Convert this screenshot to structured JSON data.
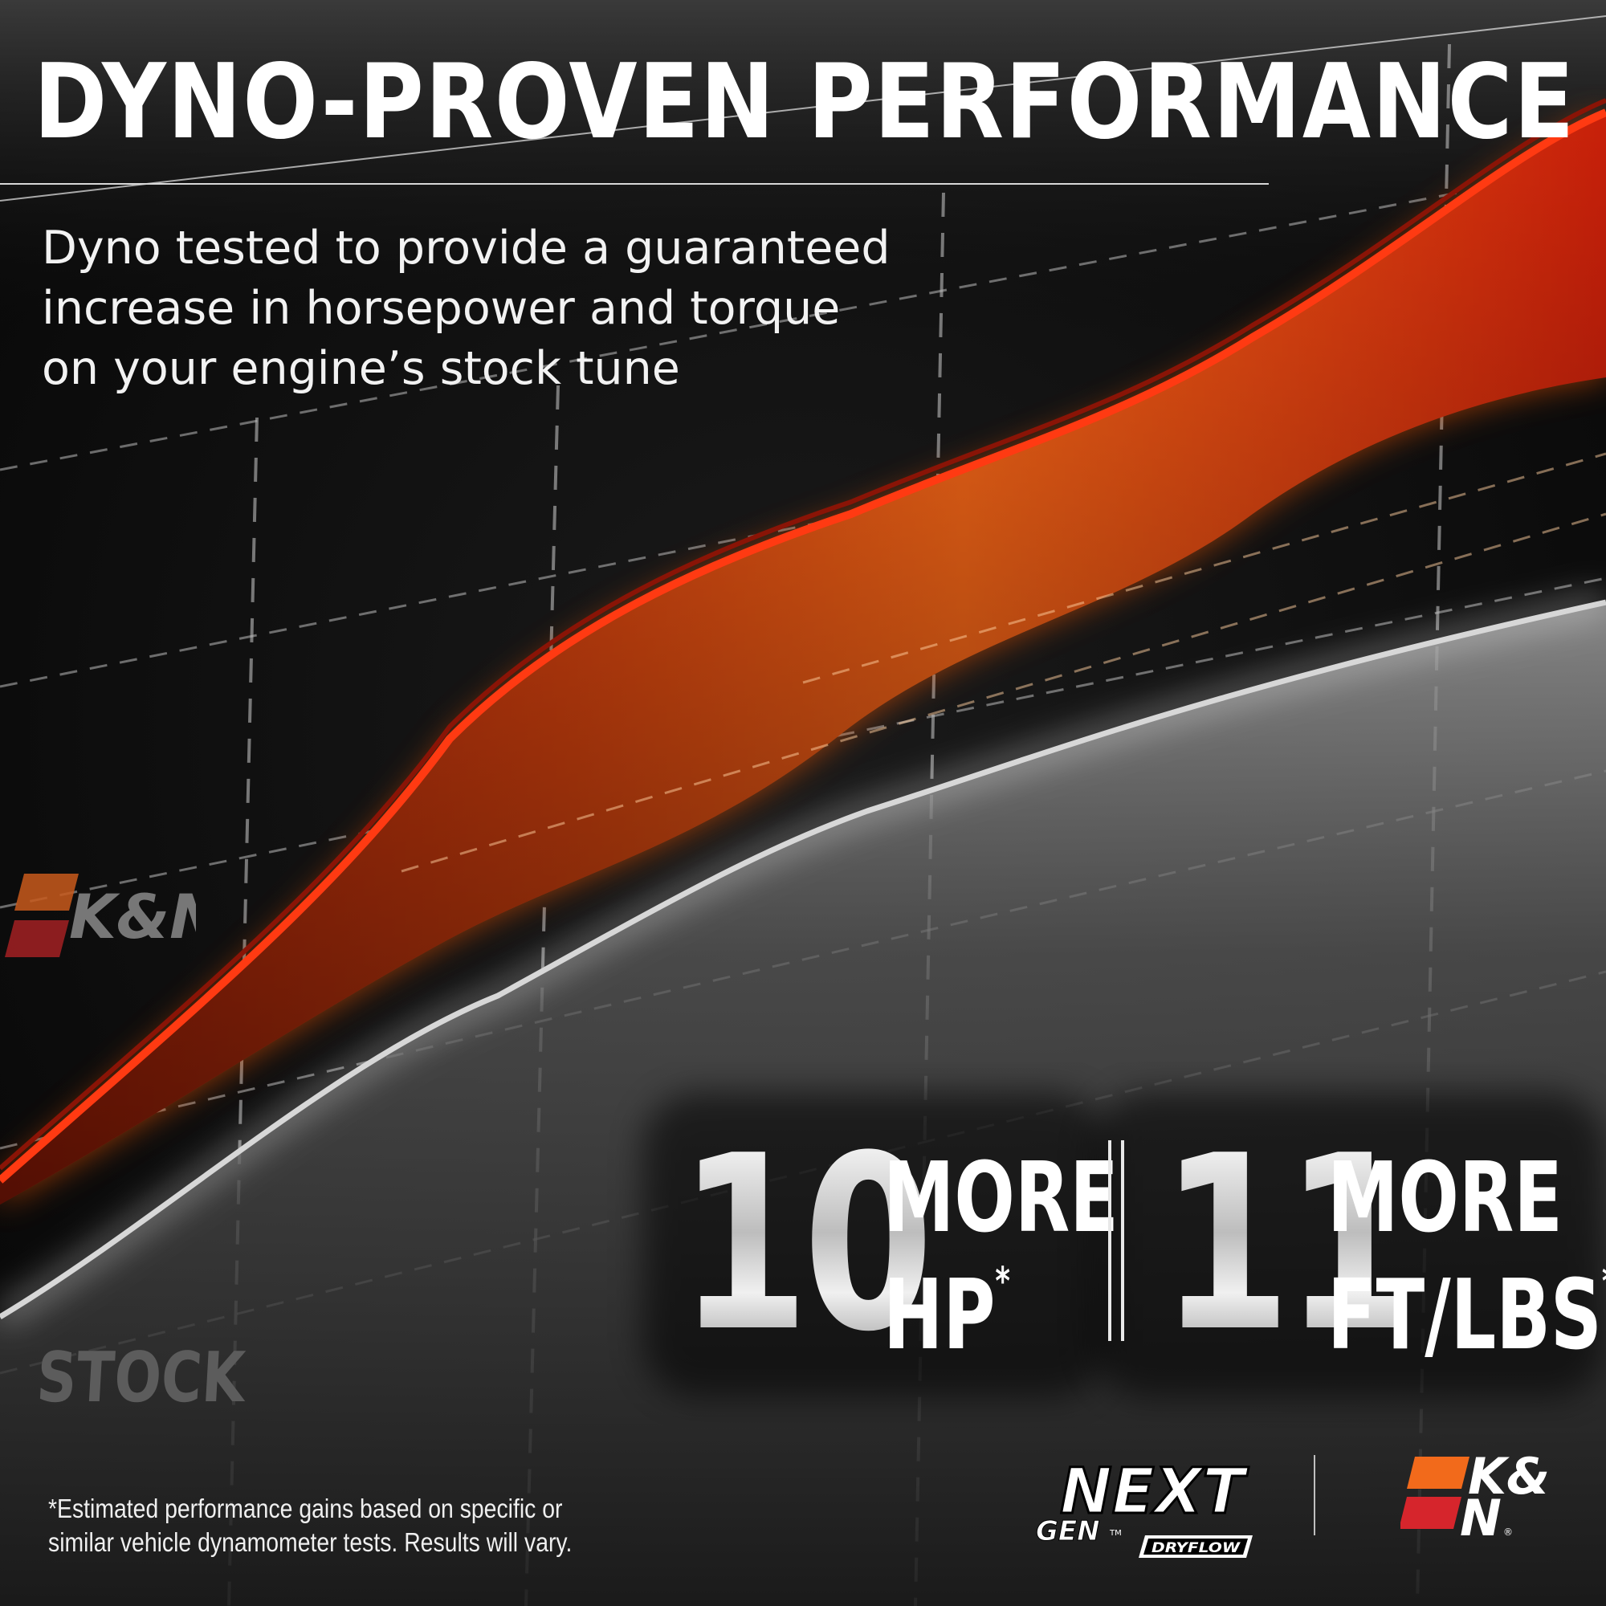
{
  "header": {
    "title": "DYNO-PROVEN PERFORMANCE",
    "subtitle_lines": [
      "Dyno tested to provide a guaranteed",
      "increase in horsepower and torque",
      "on your engine’s stock tune"
    ]
  },
  "chart_labels": {
    "brand_label": "K&N",
    "stock_label": "STOCK"
  },
  "stats": {
    "hp": {
      "value": "10",
      "line1": "MORE",
      "line2": "HP",
      "asterisk": "*"
    },
    "torque": {
      "value": "11",
      "line1": "MORE",
      "line2": "FT/LBS",
      "asterisk": "*"
    }
  },
  "footer": {
    "disclaimer_lines": [
      "*Estimated performance gains based on specific or",
      "similar vehicle dynamometer tests. Results will vary."
    ],
    "nextgen_logo": {
      "line1": "NEXT",
      "line2": "GEN",
      "tm": "TM",
      "tag": "DRYFLOW"
    },
    "kn_logo": {
      "text_top": "K&",
      "text_bottom": "N",
      "reg": "®"
    }
  },
  "colors": {
    "background": "#070707",
    "kn_curve": "#d8300c",
    "kn_curve_glow": "#ff7a1a",
    "stock_curve": "#8a8a8a",
    "kn_orange": "#f26a1b",
    "kn_red": "#d6252c",
    "text": "#ffffff"
  },
  "icons": {
    "brand_mark": "kn-logo-icon",
    "product_mark": "nextgen-dryflow-logo-icon"
  }
}
